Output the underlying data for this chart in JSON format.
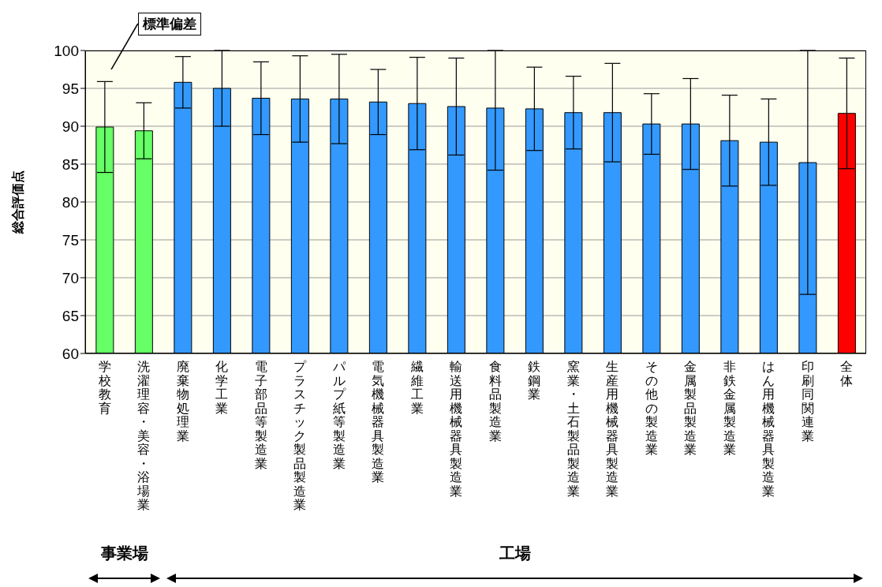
{
  "chart_data": {
    "type": "bar",
    "ylabel": "総合評価点",
    "categories": [
      "学校教育",
      "洗濯理容・美容・浴場業",
      "廃棄物処理業",
      "化学工業",
      "電子部品等製造業",
      "プラスチック製品製造業",
      "パルプ紙等製造業",
      "電気機械器具製造業",
      "繊維工業",
      "輸送用機械器具製造業",
      "食料品製造業",
      "鉄鋼業",
      "窯業・土石製品製造業",
      "生産用機械器具製造業",
      "その他の製造業",
      "金属製品製造業",
      "非鉄金属製造業",
      "はん用機械器具製造業",
      "印刷同関連業",
      "全体"
    ],
    "values": [
      89.9,
      89.4,
      95.8,
      95.0,
      93.7,
      93.6,
      93.6,
      93.2,
      93.0,
      92.6,
      92.4,
      92.3,
      91.8,
      91.8,
      90.3,
      90.3,
      88.1,
      87.9,
      85.2,
      91.7
    ],
    "errors": [
      6.0,
      3.7,
      3.4,
      5.0,
      4.8,
      5.7,
      5.9,
      4.3,
      6.1,
      6.4,
      [
        84.2,
        100
      ],
      5.5,
      4.8,
      6.5,
      4.0,
      6.0,
      6.0,
      5.7,
      [
        67.8,
        100
      ],
      7.3
    ],
    "colors": [
      "#66ff66",
      "#66ff66",
      "#3399ff",
      "#3399ff",
      "#3399ff",
      "#3399ff",
      "#3399ff",
      "#3399ff",
      "#3399ff",
      "#3399ff",
      "#3399ff",
      "#3399ff",
      "#3399ff",
      "#3399ff",
      "#3399ff",
      "#3399ff",
      "#3399ff",
      "#3399ff",
      "#3399ff",
      "#ff0000"
    ],
    "ylim": [
      60,
      100
    ],
    "yticks": [
      60,
      65,
      70,
      75,
      80,
      85,
      90,
      95,
      100
    ],
    "grid": "y",
    "legend": false,
    "annotations": [
      {
        "text": "標準偏差",
        "x": "学校教育",
        "y": 95.8
      },
      "事業場",
      "工場"
    ]
  }
}
